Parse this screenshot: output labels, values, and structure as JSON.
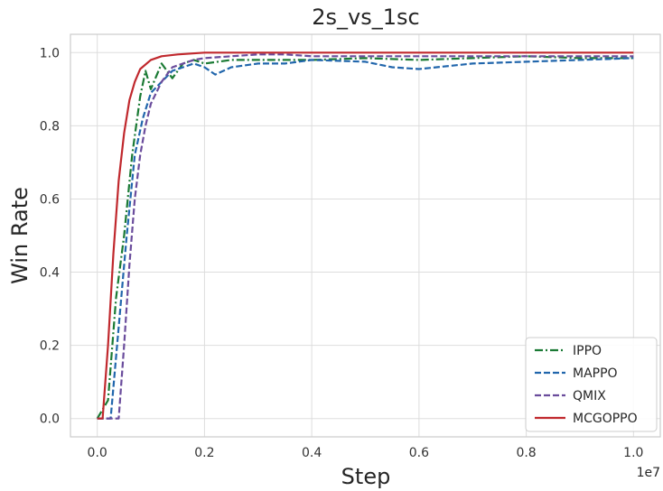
{
  "chart_data": {
    "type": "line",
    "title": "2s_vs_1sc",
    "xlabel": "Step",
    "ylabel": "Win Rate",
    "x_offset_label": "1e7",
    "xlim": [
      -0.05,
      1.05
    ],
    "ylim": [
      -0.05,
      1.05
    ],
    "x_ticks": [
      0.0,
      0.2,
      0.4,
      0.6,
      0.8,
      1.0
    ],
    "x_tick_labels": [
      "0.0",
      "0.2",
      "0.4",
      "0.6",
      "0.8",
      "1.0"
    ],
    "y_ticks": [
      0.0,
      0.2,
      0.4,
      0.6,
      0.8,
      1.0
    ],
    "y_tick_labels": [
      "0.0",
      "0.2",
      "0.4",
      "0.6",
      "0.8",
      "1.0"
    ],
    "grid": true,
    "legend_position": "lower-right",
    "series": [
      {
        "name": "IPPO",
        "color": "#1a7a34",
        "dash": "dashdot",
        "x": [
          0.0,
          0.02,
          0.035,
          0.05,
          0.065,
          0.08,
          0.09,
          0.1,
          0.12,
          0.14,
          0.16,
          0.18,
          0.2,
          0.25,
          0.3,
          0.35,
          0.4,
          0.5,
          0.6,
          0.7,
          0.8,
          0.9,
          1.0
        ],
        "y": [
          0.0,
          0.05,
          0.33,
          0.5,
          0.72,
          0.88,
          0.95,
          0.9,
          0.97,
          0.93,
          0.97,
          0.98,
          0.97,
          0.98,
          0.98,
          0.98,
          0.98,
          0.985,
          0.98,
          0.985,
          0.99,
          0.985,
          0.985
        ]
      },
      {
        "name": "MAPPO",
        "color": "#2166ac",
        "dash": "dashed",
        "x": [
          0.0,
          0.025,
          0.04,
          0.055,
          0.07,
          0.085,
          0.1,
          0.12,
          0.14,
          0.16,
          0.18,
          0.2,
          0.22,
          0.25,
          0.3,
          0.35,
          0.4,
          0.5,
          0.55,
          0.6,
          0.7,
          0.8,
          0.9,
          1.0
        ],
        "y": [
          0.0,
          0.0,
          0.25,
          0.5,
          0.72,
          0.82,
          0.89,
          0.92,
          0.95,
          0.96,
          0.97,
          0.96,
          0.94,
          0.96,
          0.97,
          0.97,
          0.98,
          0.975,
          0.96,
          0.955,
          0.97,
          0.975,
          0.98,
          0.985
        ]
      },
      {
        "name": "QMIX",
        "color": "#6a4c9c",
        "dash": "dashed",
        "x": [
          0.0,
          0.04,
          0.05,
          0.06,
          0.07,
          0.08,
          0.09,
          0.1,
          0.12,
          0.14,
          0.16,
          0.18,
          0.2,
          0.25,
          0.3,
          0.35,
          0.4,
          0.5,
          0.6,
          0.7,
          0.8,
          0.9,
          1.0
        ],
        "y": [
          0.0,
          0.0,
          0.2,
          0.42,
          0.6,
          0.72,
          0.8,
          0.86,
          0.92,
          0.96,
          0.97,
          0.98,
          0.985,
          0.99,
          0.995,
          0.995,
          0.99,
          0.99,
          0.99,
          0.99,
          0.99,
          0.99,
          0.99
        ]
      },
      {
        "name": "MCGOPPO",
        "color": "#c0282d",
        "dash": "solid",
        "x": [
          0.0,
          0.01,
          0.02,
          0.03,
          0.04,
          0.05,
          0.06,
          0.07,
          0.08,
          0.1,
          0.12,
          0.15,
          0.2,
          0.3,
          0.5,
          0.7,
          1.0
        ],
        "y": [
          0.0,
          0.0,
          0.2,
          0.45,
          0.65,
          0.78,
          0.87,
          0.92,
          0.955,
          0.98,
          0.99,
          0.995,
          1.0,
          1.0,
          1.0,
          1.0,
          1.0
        ]
      }
    ]
  }
}
